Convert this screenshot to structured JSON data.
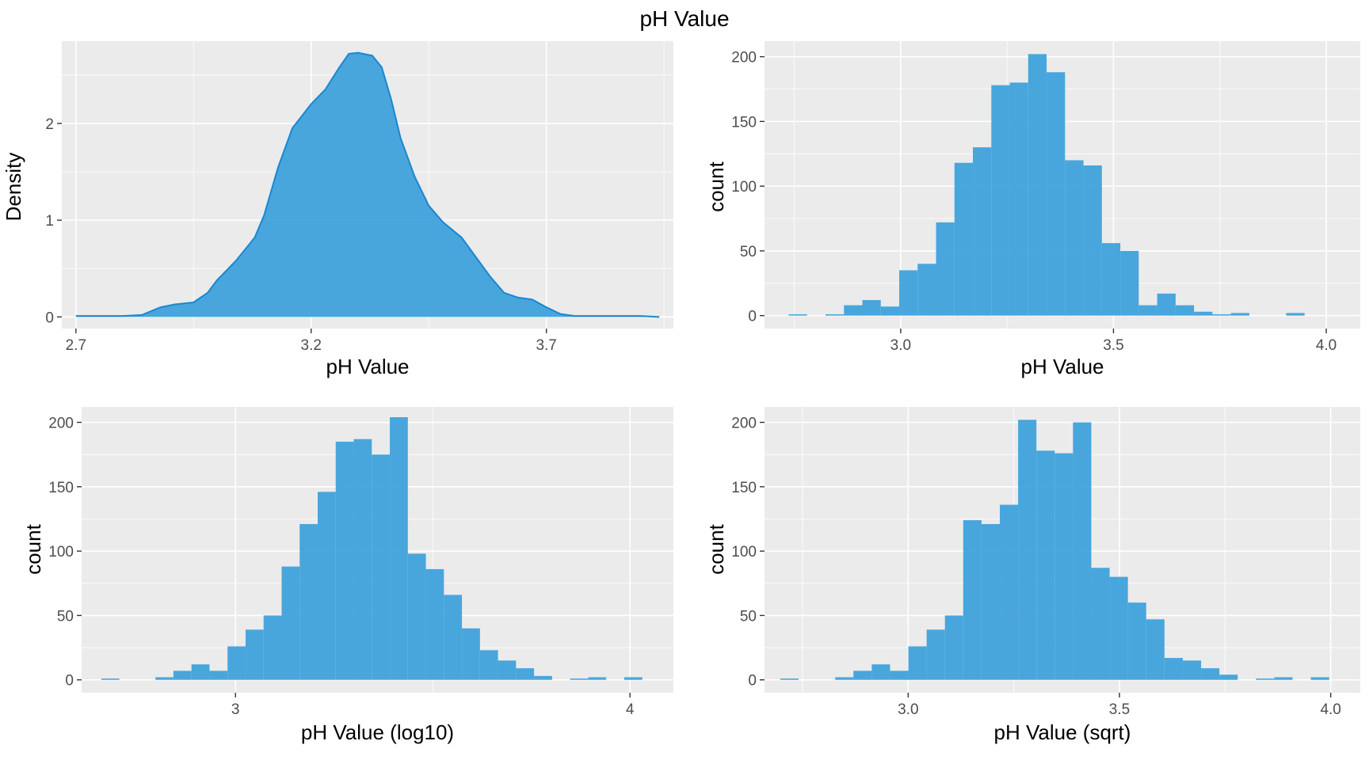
{
  "figure_title": "pH Value",
  "colors": {
    "fill": "#3FA2DB",
    "line": "#1A87D0",
    "panel": "#EBEBEB"
  },
  "chart_data": [
    {
      "type": "area",
      "xlabel": "pH Value",
      "ylabel": "Density",
      "xlim": [
        2.67,
        3.97
      ],
      "ylim": [
        -0.12,
        2.85
      ],
      "xticks": [
        2.7,
        3.2,
        3.7
      ],
      "xtick_labels": [
        "2.7",
        "3.2",
        "3.7"
      ],
      "yticks": [
        0,
        1,
        2
      ],
      "ytick_labels": [
        "0",
        "1",
        "2"
      ],
      "x": [
        2.7,
        2.75,
        2.8,
        2.84,
        2.88,
        2.91,
        2.95,
        2.98,
        3.0,
        3.04,
        3.08,
        3.1,
        3.13,
        3.16,
        3.2,
        3.23,
        3.26,
        3.28,
        3.3,
        3.33,
        3.35,
        3.37,
        3.39,
        3.42,
        3.45,
        3.48,
        3.52,
        3.55,
        3.58,
        3.61,
        3.64,
        3.67,
        3.7,
        3.73,
        3.76,
        3.8,
        3.85,
        3.9,
        3.94
      ],
      "y": [
        0.01,
        0.01,
        0.01,
        0.02,
        0.1,
        0.13,
        0.15,
        0.25,
        0.38,
        0.58,
        0.82,
        1.05,
        1.55,
        1.95,
        2.2,
        2.35,
        2.58,
        2.72,
        2.73,
        2.7,
        2.58,
        2.25,
        1.85,
        1.45,
        1.15,
        0.98,
        0.82,
        0.62,
        0.42,
        0.25,
        0.2,
        0.18,
        0.1,
        0.03,
        0.01,
        0.01,
        0.01,
        0.01,
        0.0
      ]
    },
    {
      "type": "bar",
      "xlabel": "pH Value",
      "ylabel": "count",
      "xlim": [
        2.68,
        4.08
      ],
      "ylim": [
        -10,
        212
      ],
      "xticks": [
        3.0,
        3.5,
        4.0
      ],
      "xtick_labels": [
        "3.0",
        "3.5",
        "4.0"
      ],
      "yticks": [
        0,
        50,
        100,
        150,
        200
      ],
      "ytick_labels": [
        "0",
        "50",
        "100",
        "150",
        "200"
      ],
      "bin_start": 2.7367,
      "bin_width": 0.0433,
      "counts": [
        1,
        0,
        1,
        8,
        12,
        7,
        35,
        40,
        72,
        118,
        130,
        178,
        180,
        202,
        188,
        120,
        116,
        56,
        50,
        8,
        17,
        8,
        3,
        1,
        2,
        0,
        0,
        2
      ]
    },
    {
      "type": "bar",
      "xlabel": "pH Value (log10)",
      "ylabel": "count",
      "xlim": [
        2.61,
        4.11
      ],
      "ylim": [
        -10,
        212
      ],
      "xticks": [
        3,
        4
      ],
      "xtick_labels": [
        "3",
        "4"
      ],
      "yticks": [
        0,
        50,
        100,
        150,
        200
      ],
      "ytick_labels": [
        "0",
        "50",
        "100",
        "150",
        "200"
      ],
      "bin_start": 2.66,
      "bin_width": 0.0457,
      "counts": [
        1,
        0,
        0,
        2,
        7,
        12,
        7,
        26,
        39,
        50,
        88,
        121,
        146,
        185,
        187,
        175,
        204,
        98,
        86,
        66,
        40,
        23,
        15,
        9,
        3,
        0,
        1,
        2,
        0,
        2
      ]
    },
    {
      "type": "bar",
      "xlabel": "pH Value (sqrt)",
      "ylabel": "count",
      "xlim": [
        2.66,
        4.07
      ],
      "ylim": [
        -10,
        212
      ],
      "xticks": [
        3.0,
        3.5,
        4.0
      ],
      "xtick_labels": [
        "3.0",
        "3.5",
        "4.0"
      ],
      "yticks": [
        0,
        50,
        100,
        150,
        200
      ],
      "ytick_labels": [
        "0",
        "50",
        "100",
        "150",
        "200"
      ],
      "bin_start": 2.6973,
      "bin_width": 0.0433,
      "counts": [
        1,
        0,
        0,
        2,
        7,
        12,
        7,
        26,
        39,
        50,
        124,
        121,
        136,
        202,
        178,
        176,
        200,
        87,
        80,
        60,
        47,
        17,
        15,
        9,
        4,
        0,
        1,
        2,
        0,
        2
      ]
    }
  ]
}
